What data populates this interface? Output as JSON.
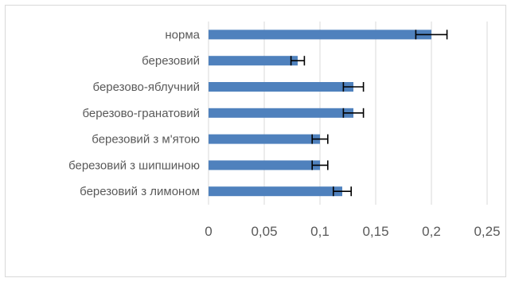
{
  "chart_data": {
    "type": "bar",
    "orientation": "horizontal",
    "title": "",
    "xlabel": "",
    "ylabel": "",
    "categories": [
      "норма",
      "березовий",
      "березово-яблучний",
      "березово-гранатовий",
      "березовий з м'ятою",
      "березовий з шипшиною",
      "березовий з лимоном"
    ],
    "values": [
      0.2,
      0.08,
      0.13,
      0.13,
      0.1,
      0.1,
      0.12
    ],
    "error": [
      0.014,
      0.006,
      0.009,
      0.009,
      0.007,
      0.007,
      0.008
    ],
    "xlim": [
      0,
      0.25
    ],
    "xticks": [
      "0",
      "0,05",
      "0,1",
      "0,15",
      "0,2",
      "0,25"
    ],
    "xtick_values": [
      0,
      0.05,
      0.1,
      0.15,
      0.2,
      0.25
    ],
    "grid": "vertical",
    "legend": "none",
    "colors": {
      "bar": "#4f81bd",
      "error_bar": "#000000",
      "grid": "#d9d9d9",
      "text": "#595959",
      "border": "#d9d9d9"
    }
  }
}
